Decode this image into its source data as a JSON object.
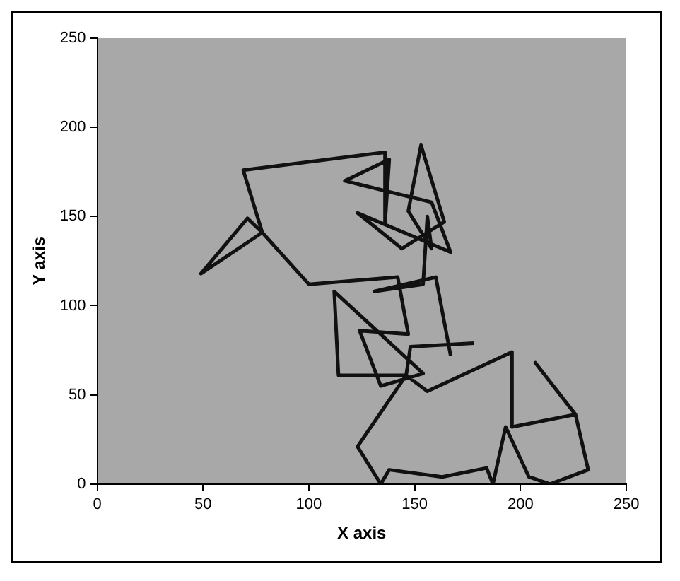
{
  "chart_data": {
    "type": "line",
    "xlabel": "X axis",
    "ylabel": "Y axis",
    "xlim": [
      0,
      250
    ],
    "xticks": [
      0,
      50,
      100,
      150,
      200,
      250
    ],
    "ylim": [
      0,
      250
    ],
    "yticks": [
      0,
      50,
      100,
      150,
      200,
      250
    ],
    "grid": false,
    "legend": false,
    "marker": "none",
    "line_style": "solid",
    "series": [
      {
        "color": "#111111",
        "x": [
          167,
          160,
          131,
          154,
          156,
          158,
          147,
          153,
          164,
          144,
          123,
          167,
          158,
          117,
          138,
          136,
          136,
          69,
          78,
          71,
          49,
          78,
          100,
          142,
          147,
          124,
          134,
          154,
          112,
          114,
          146,
          156,
          196,
          196,
          226,
          207,
          226,
          232,
          214,
          204,
          193,
          187,
          184,
          163,
          138,
          134,
          123,
          146,
          148,
          178
        ],
        "values": [
          72,
          116,
          108,
          112,
          150,
          132,
          153,
          190,
          147,
          132,
          152,
          130,
          158,
          170,
          182,
          146,
          186,
          176,
          141,
          149,
          118,
          141,
          112,
          116,
          84,
          86,
          55,
          62,
          108,
          61,
          61,
          52,
          74,
          32,
          39,
          68,
          39,
          8,
          0,
          4,
          32,
          0,
          9,
          4,
          8,
          0,
          21,
          61,
          77,
          79
        ]
      }
    ]
  }
}
